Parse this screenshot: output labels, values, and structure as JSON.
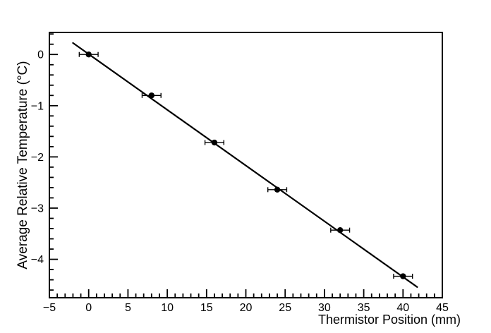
{
  "chart_data": {
    "type": "scatter",
    "title": "",
    "xlabel": "Thermistor Position (mm)",
    "ylabel": "Average Relative Temperature (°C)",
    "xlim": [
      -5,
      45
    ],
    "ylim": [
      -4.75,
      0.43
    ],
    "x_major_ticks": [
      -5,
      0,
      5,
      10,
      15,
      20,
      25,
      30,
      35,
      40,
      45
    ],
    "x_tick_labels": [
      "−5",
      "0",
      "5",
      "10",
      "15",
      "20",
      "25",
      "30",
      "35",
      "40",
      "45"
    ],
    "x_minor_step": 1,
    "y_major_ticks": [
      0,
      -1,
      -2,
      -3,
      -4
    ],
    "y_tick_labels": [
      "0",
      "−1",
      "−2",
      "−3",
      "−4"
    ],
    "y_minor_step": 0.2,
    "grid": false,
    "legend": null,
    "series": [
      {
        "name": "linear-fit",
        "type": "line",
        "color": "#000000",
        "x_start": -2.0,
        "x_end": 41.8,
        "slope": -0.1088,
        "intercept": 0.007
      },
      {
        "name": "measured-points",
        "type": "scatter",
        "marker": "filled-circle",
        "color": "#000000",
        "x": [
          0,
          8,
          16,
          24,
          32,
          40
        ],
        "y": [
          0.0,
          -0.8,
          -1.72,
          -2.64,
          -3.43,
          -4.33
        ],
        "xerr": 1.2,
        "yerr": 0
      }
    ]
  },
  "colors": {
    "background": "#ffffff",
    "frame": "#000000",
    "text": "#000000"
  }
}
